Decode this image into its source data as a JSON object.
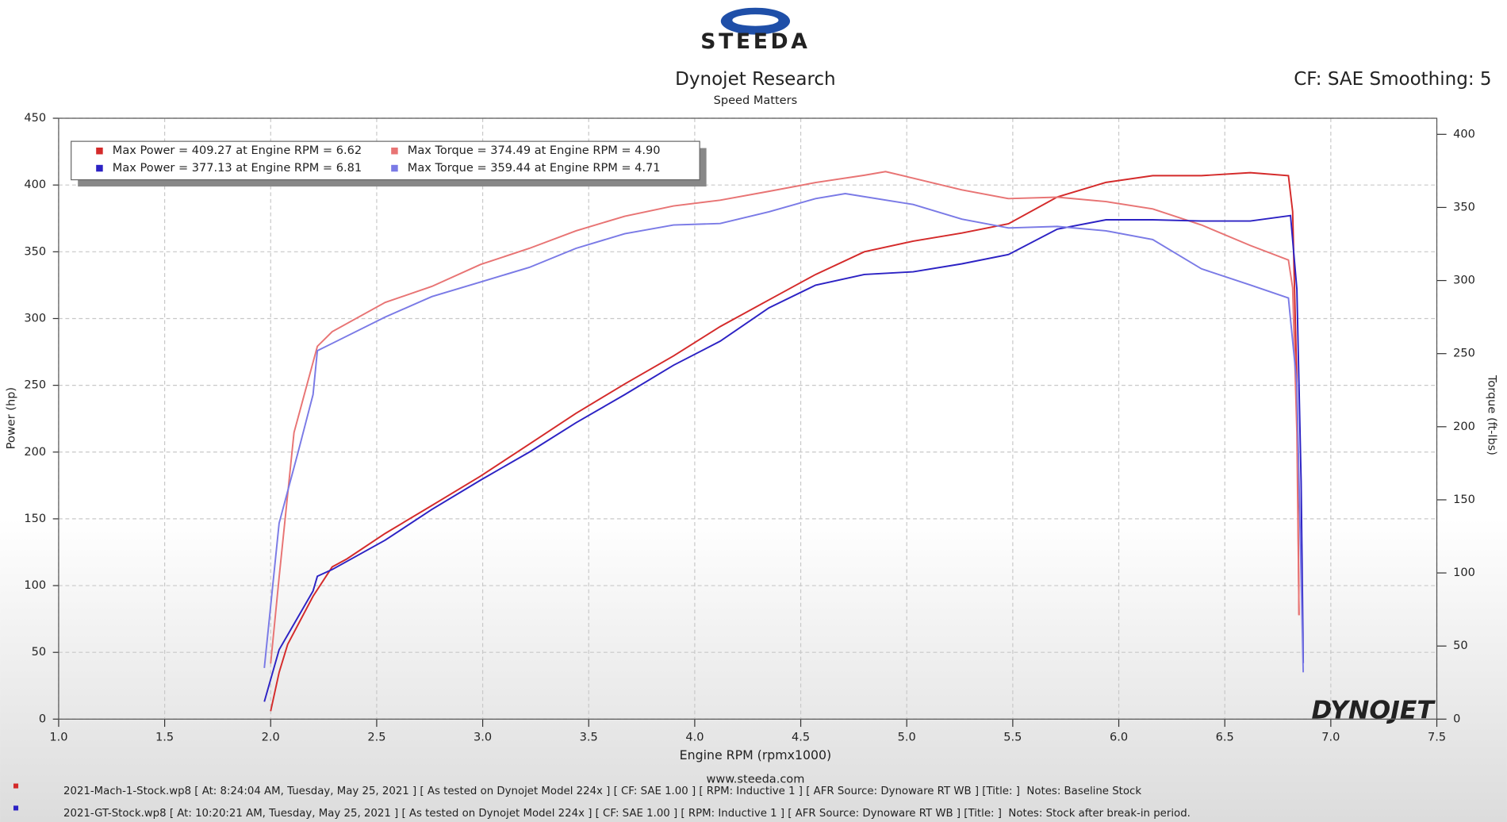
{
  "logo": "STEEDA",
  "chart_data": {
    "type": "line",
    "title": "Dynojet Research",
    "subtitle": "Speed Matters",
    "info": "CF: SAE Smoothing: 5",
    "watermark": "DYNOJET",
    "xlabel": "Engine RPM (rpmx1000)",
    "ylabel": "Power (hp)",
    "y2label": "Torque (ft-lbs)",
    "website": "www.steeda.com",
    "grid": true,
    "xlim": [
      1.0,
      7.5
    ],
    "xticks": [
      {
        "value": 1.0,
        "label": "1.0"
      },
      1.5,
      {
        "value": 2.0,
        "label": "2.0"
      },
      2.5,
      {
        "value": 3.0,
        "label": "3.0"
      },
      3.5,
      {
        "value": 4.0,
        "label": "4.0"
      },
      4.5,
      {
        "value": 5.0,
        "label": "5.0"
      },
      5.5,
      {
        "value": 6.0,
        "label": "6.0"
      },
      6.5,
      {
        "value": 7.0,
        "label": "7.0"
      },
      7.5
    ],
    "ylim": [
      0,
      450
    ],
    "yticks": [
      0,
      50,
      100,
      150,
      200,
      250,
      300,
      350,
      400,
      450
    ],
    "y2lim": [
      0,
      411
    ],
    "y2ticks": [
      0,
      50,
      100,
      150,
      200,
      250,
      300,
      350,
      400
    ],
    "series": [
      {
        "name": "Max Power = 409.27 at Engine RPM = 6.62",
        "color": "#d42a2a",
        "x": [
          2.0,
          2.04,
          2.08,
          2.2,
          2.29,
          2.36,
          2.54,
          2.76,
          2.99,
          3.22,
          3.44,
          3.67,
          3.9,
          4.12,
          4.35,
          4.57,
          4.8,
          5.03,
          5.26,
          5.48,
          5.71,
          5.94,
          6.16,
          6.39,
          6.62,
          6.8,
          6.82,
          6.84,
          6.85
        ],
        "values": [
          6,
          35,
          56,
          92,
          114,
          120,
          139,
          160,
          182,
          206,
          229,
          251,
          272,
          294,
          314,
          333,
          350,
          358,
          364,
          371,
          391,
          402,
          407,
          407,
          409.27,
          407,
          380,
          250,
          78
        ]
      },
      {
        "name": "Max Torque = 374.49 at Engine RPM = 4.90",
        "color": "#e87474",
        "axis": "y2",
        "x": [
          2.0,
          2.04,
          2.11,
          2.22,
          2.29,
          2.54,
          2.76,
          2.99,
          3.22,
          3.44,
          3.67,
          3.9,
          4.12,
          4.35,
          4.57,
          4.8,
          4.9,
          5.03,
          5.26,
          5.48,
          5.71,
          5.94,
          6.16,
          6.39,
          6.62,
          6.8,
          6.82,
          6.84,
          6.85
        ],
        "values": [
          38,
          97,
          196,
          255,
          265,
          285,
          296,
          311,
          322,
          334,
          344,
          351,
          355,
          361,
          367,
          372,
          374.49,
          370,
          362,
          356,
          357,
          354,
          349,
          338,
          324,
          314,
          295,
          196,
          71
        ]
      },
      {
        "name": "Max Power = 377.13 at Engine RPM = 6.81",
        "color": "#2c22c4",
        "x": [
          1.97,
          2.04,
          2.2,
          2.22,
          2.29,
          2.54,
          2.76,
          2.99,
          3.22,
          3.44,
          3.67,
          3.9,
          4.12,
          4.35,
          4.57,
          4.8,
          5.03,
          5.26,
          5.48,
          5.71,
          5.94,
          6.16,
          6.39,
          6.62,
          6.81,
          6.84,
          6.86,
          6.87
        ],
        "values": [
          13,
          52,
          96,
          107,
          112,
          134,
          157,
          179,
          200,
          222,
          243,
          265,
          283,
          308,
          325,
          333,
          335,
          341,
          348,
          367,
          374,
          374,
          373,
          373,
          377.13,
          322,
          178,
          42
        ]
      },
      {
        "name": "Max Torque = 359.44 at Engine RPM = 4.71",
        "color": "#7a7ae6",
        "axis": "y2",
        "x": [
          1.97,
          2.04,
          2.13,
          2.2,
          2.22,
          2.29,
          2.54,
          2.76,
          2.99,
          3.22,
          3.44,
          3.67,
          3.9,
          4.12,
          4.35,
          4.57,
          4.71,
          5.03,
          5.26,
          5.48,
          5.71,
          5.94,
          6.16,
          6.39,
          6.62,
          6.8,
          6.84,
          6.86,
          6.87
        ],
        "values": [
          35,
          134,
          183,
          222,
          252,
          257,
          275,
          289,
          299,
          309,
          322,
          332,
          338,
          339,
          347,
          356,
          359.44,
          352,
          342,
          336,
          337,
          334,
          328,
          308,
          297,
          288,
          229,
          97,
          32
        ]
      }
    ],
    "files": [
      {
        "color": "#d42a2a",
        "text": "2021-Mach-1-Stock.wp8 [ At: 8:24:04 AM, Tuesday, May 25, 2021 ] [ As tested on Dynojet Model 224x ] [ CF: SAE 1.00 ] [ RPM: Inductive 1 ] [ AFR Source: Dynoware RT WB ] [Title: ]  Notes: Baseline Stock"
      },
      {
        "color": "#2c22c4",
        "text": "2021-GT-Stock.wp8 [ At: 10:20:21 AM, Tuesday, May 25, 2021 ] [ As tested on Dynojet Model 224x ] [ CF: SAE 1.00 ] [ RPM: Inductive 1 ] [ AFR Source: Dynoware RT WB ] [Title: ]  Notes: Stock after break-in period."
      }
    ]
  }
}
